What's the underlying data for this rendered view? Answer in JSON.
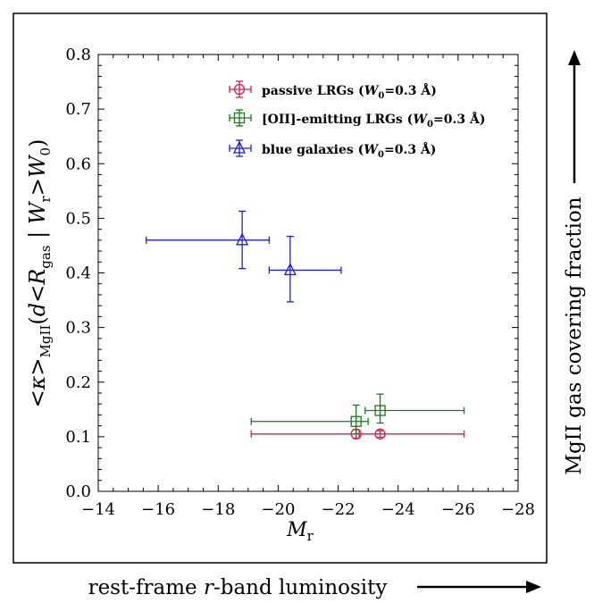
{
  "chart_data": {
    "type": "scatter",
    "xlabel": "M",
    "xlabel_sub": "r",
    "ylabel_parts": [
      "<",
      "κ",
      ">",
      "MgII",
      "(",
      "d",
      "<",
      "R",
      "gas",
      " | ",
      "W",
      "r",
      ">",
      "W",
      "0",
      ")"
    ],
    "xlim": [
      -14,
      -28
    ],
    "ylim": [
      0.0,
      0.8
    ],
    "x_ticks": [
      -14,
      -16,
      -18,
      -20,
      -22,
      -24,
      -26,
      -28
    ],
    "x_tick_labels": [
      "−14",
      "−16",
      "−18",
      "−20",
      "−22",
      "−24",
      "−26",
      "−28"
    ],
    "y_ticks": [
      0.0,
      0.1,
      0.2,
      0.3,
      0.4,
      0.5,
      0.6,
      0.7,
      0.8
    ],
    "y_tick_labels": [
      "0.0",
      "0.1",
      "0.2",
      "0.3",
      "0.4",
      "0.5",
      "0.6",
      "0.7",
      "0.8"
    ],
    "legend_position": "top-right",
    "series": [
      {
        "name": "passive LRGs",
        "label_suffix": "=0.3 Å)",
        "color": "#d6204a",
        "marker": "circle",
        "points": [
          {
            "x": -22.6,
            "y": 0.105,
            "xerr_low": -19.1,
            "xerr_high": -22.7,
            "yerr_low": 0.097,
            "yerr_high": 0.113
          },
          {
            "x": -23.4,
            "y": 0.105,
            "xerr_low": -22.7,
            "xerr_high": -26.2,
            "yerr_low": 0.099,
            "yerr_high": 0.111
          }
        ]
      },
      {
        "name": "[OII]-emitting LRGs",
        "label_suffix": "=0.3 Å)",
        "color": "#1a7a1a",
        "marker": "square",
        "points": [
          {
            "x": -22.6,
            "y": 0.128,
            "xerr_low": -19.1,
            "xerr_high": -23.0,
            "yerr_low": 0.105,
            "yerr_high": 0.158
          },
          {
            "x": -23.4,
            "y": 0.148,
            "xerr_low": -22.9,
            "xerr_high": -26.2,
            "yerr_low": 0.125,
            "yerr_high": 0.178
          }
        ]
      },
      {
        "name": "blue galaxies",
        "label_suffix": "=0.3 Å)",
        "color": "#1f1fd6",
        "marker": "triangle",
        "points": [
          {
            "x": -18.8,
            "y": 0.46,
            "xerr_low": -15.6,
            "xerr_high": -19.7,
            "yerr_low": 0.408,
            "yerr_high": 0.513
          },
          {
            "x": -20.4,
            "y": 0.405,
            "xerr_low": -19.7,
            "xerr_high": -22.1,
            "yerr_low": 0.347,
            "yerr_high": 0.467
          }
        ]
      }
    ],
    "legend_w_prefix": "(",
    "legend_w_symbol": "W",
    "legend_w_sub": "0"
  },
  "annotations": {
    "right_label_base": "MgII gas covering fraction",
    "bottom_label_pre": "rest-frame ",
    "bottom_label_italic": "r",
    "bottom_label_post": "-band luminosity"
  }
}
